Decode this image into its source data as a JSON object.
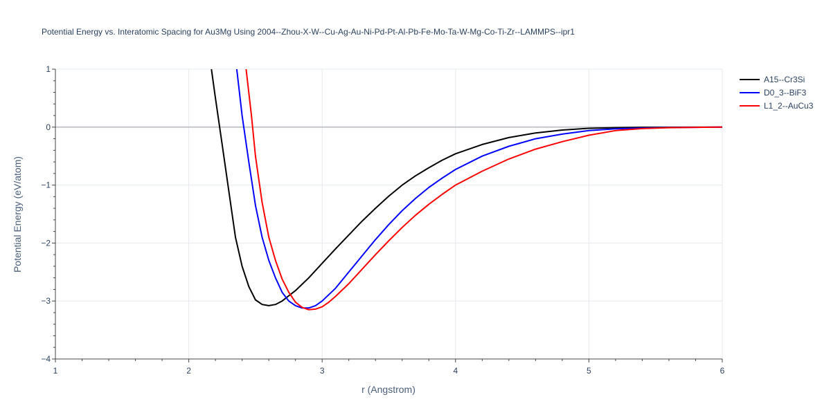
{
  "chart_data": {
    "type": "line",
    "title": "Potential Energy vs. Interatomic Spacing for Au3Mg Using 2004--Zhou-X-W--Cu-Ag-Au-Ni-Pd-Pt-Al-Pb-Fe-Mo-Ta-W-Mg-Co-Ti-Zr--LAMMPS--ipr1",
    "xlabel": "r (Angstrom)",
    "ylabel": "Potential Energy (eV/atom)",
    "xlim": [
      1,
      6
    ],
    "ylim": [
      -4,
      1
    ],
    "xticks": [
      1,
      2,
      3,
      4,
      5,
      6
    ],
    "yticks": [
      1,
      0,
      -1,
      -2,
      -3,
      -4
    ],
    "xtick_labels": [
      "1",
      "2",
      "3",
      "4",
      "5",
      "6"
    ],
    "ytick_labels": [
      "1",
      "0",
      "−1",
      "−2",
      "−3",
      "−4"
    ],
    "grid": true,
    "legend_position": "top-right",
    "series": [
      {
        "name": "A15--Cr3Si",
        "color": "#000000",
        "x": [
          2.17,
          2.2,
          2.25,
          2.3,
          2.35,
          2.4,
          2.45,
          2.5,
          2.55,
          2.6,
          2.65,
          2.7,
          2.8,
          2.9,
          3.0,
          3.1,
          3.2,
          3.3,
          3.4,
          3.5,
          3.6,
          3.7,
          3.8,
          3.9,
          4.0,
          4.2,
          4.4,
          4.6,
          4.8,
          5.0,
          5.2,
          5.4,
          5.6,
          5.8,
          6.0
        ],
        "y": [
          1.0,
          0.5,
          -0.3,
          -1.1,
          -1.9,
          -2.4,
          -2.75,
          -2.98,
          -3.06,
          -3.08,
          -3.06,
          -3.0,
          -2.82,
          -2.6,
          -2.35,
          -2.1,
          -1.86,
          -1.62,
          -1.4,
          -1.19,
          -1.0,
          -0.84,
          -0.7,
          -0.57,
          -0.46,
          -0.3,
          -0.18,
          -0.1,
          -0.05,
          -0.02,
          -0.01,
          -0.004,
          -0.002,
          -0.001,
          0.0
        ]
      },
      {
        "name": "D0_3--BiF3",
        "color": "#0000ff",
        "x": [
          2.36,
          2.4,
          2.45,
          2.5,
          2.55,
          2.6,
          2.65,
          2.7,
          2.75,
          2.8,
          2.85,
          2.9,
          2.95,
          3.0,
          3.1,
          3.2,
          3.3,
          3.4,
          3.5,
          3.6,
          3.7,
          3.8,
          3.9,
          4.0,
          4.2,
          4.4,
          4.6,
          4.8,
          5.0,
          5.2,
          5.4,
          5.6,
          5.8,
          6.0
        ],
        "y": [
          1.0,
          0.2,
          -0.6,
          -1.35,
          -1.9,
          -2.3,
          -2.6,
          -2.85,
          -3.0,
          -3.08,
          -3.12,
          -3.12,
          -3.08,
          -3.0,
          -2.78,
          -2.5,
          -2.22,
          -1.94,
          -1.68,
          -1.44,
          -1.23,
          -1.04,
          -0.88,
          -0.73,
          -0.5,
          -0.33,
          -0.2,
          -0.12,
          -0.06,
          -0.03,
          -0.015,
          -0.007,
          -0.003,
          0.0
        ]
      },
      {
        "name": "L1_2--AuCu3",
        "color": "#ff0000",
        "x": [
          2.43,
          2.47,
          2.5,
          2.55,
          2.6,
          2.65,
          2.7,
          2.75,
          2.8,
          2.85,
          2.9,
          2.95,
          3.0,
          3.05,
          3.1,
          3.2,
          3.3,
          3.4,
          3.5,
          3.6,
          3.7,
          3.8,
          3.9,
          4.0,
          4.2,
          4.4,
          4.6,
          4.8,
          5.0,
          5.2,
          5.4,
          5.6,
          5.8,
          6.0
        ],
        "y": [
          1.0,
          0.2,
          -0.5,
          -1.3,
          -1.9,
          -2.3,
          -2.62,
          -2.85,
          -3.02,
          -3.11,
          -3.15,
          -3.14,
          -3.1,
          -3.02,
          -2.92,
          -2.7,
          -2.45,
          -2.2,
          -1.96,
          -1.73,
          -1.52,
          -1.33,
          -1.16,
          -1.0,
          -0.76,
          -0.55,
          -0.38,
          -0.25,
          -0.14,
          -0.06,
          -0.025,
          -0.01,
          -0.004,
          0.0
        ]
      }
    ]
  }
}
